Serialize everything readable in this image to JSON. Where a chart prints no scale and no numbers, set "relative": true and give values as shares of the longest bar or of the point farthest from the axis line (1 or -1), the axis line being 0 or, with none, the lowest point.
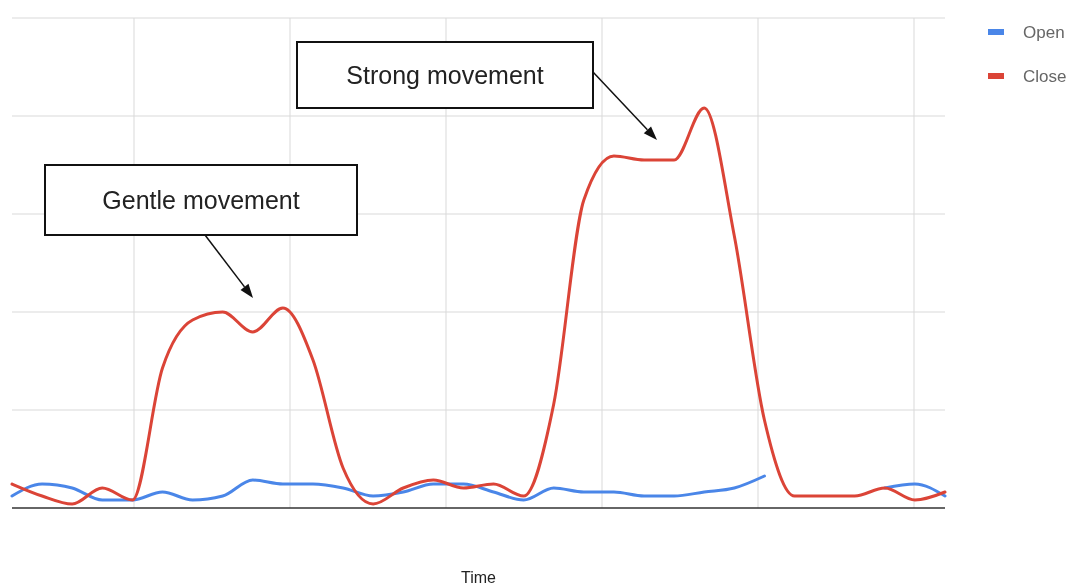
{
  "chart_data": {
    "type": "line",
    "relative": true,
    "xlabel": "Time",
    "categories": [
      null,
      null,
      null,
      null,
      null,
      null,
      null,
      null,
      null,
      null,
      null,
      null,
      null,
      null,
      null,
      null,
      null,
      null,
      null,
      null,
      null,
      null,
      null,
      null,
      null,
      null,
      null,
      null,
      null,
      null,
      null,
      null
    ],
    "series": [
      {
        "name": "Open",
        "color": "#4a86e8",
        "values": [
          0.03,
          0.06,
          0.05,
          0.02,
          0.02,
          0.04,
          0.02,
          0.03,
          0.07,
          0.06,
          0.06,
          0.05,
          0.03,
          0.04,
          0.06,
          0.06,
          0.04,
          0.02,
          0.05,
          0.04,
          0.04,
          0.03,
          0.03,
          0.04,
          0.05,
          0.08,
          null,
          null,
          null,
          0.05,
          0.06,
          0.03
        ]
      },
      {
        "name": "Close",
        "color": "#db4437",
        "values": [
          0.06,
          0.03,
          0.01,
          0.05,
          0.02,
          0.35,
          0.47,
          0.49,
          0.44,
          0.5,
          0.37,
          0.1,
          0.01,
          0.05,
          0.07,
          0.05,
          0.06,
          0.03,
          0.26,
          0.77,
          0.88,
          0.87,
          0.87,
          1.0,
          0.68,
          0.22,
          0.03,
          0.03,
          0.03,
          0.05,
          0.02,
          0.04
        ]
      }
    ],
    "annotations": [
      "Gentle movement",
      "Strong movement"
    ],
    "grid": true,
    "legend": "top right",
    "marker": "none",
    "line_style": "solid"
  }
}
